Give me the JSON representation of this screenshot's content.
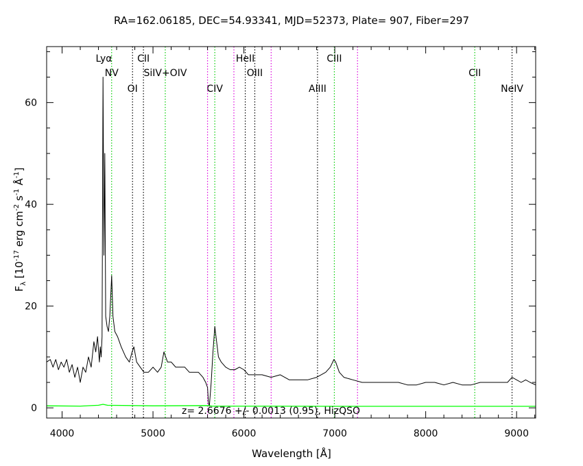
{
  "chart_data": {
    "type": "line",
    "title": "RA=162.06185, DEC=54.93341, MJD=52373, Plate= 907, Fiber=297",
    "xlabel": "Wavelength [Å]",
    "ylabel": "F_λ [10^-17 erg cm^-2 s^-1 Å^-1]",
    "xlim": [
      3830,
      9210
    ],
    "ylim": [
      -2,
      71
    ],
    "x_ticks": [
      4000,
      5000,
      6000,
      7000,
      8000,
      9000
    ],
    "y_ticks": [
      0,
      20,
      40,
      60
    ],
    "annotation": "z= 2.6676 +/- 0.0013 (0.95), HizQSO",
    "colors": {
      "flux": "#000000",
      "error": "#00ff00",
      "green_line": "#00cc00",
      "magenta_line": "#dd00dd",
      "black_line": "#000000"
    },
    "lines": [
      {
        "label": "Lyα",
        "x": 4460,
        "style": "none",
        "tier": 0
      },
      {
        "label": "NV",
        "x": 4545,
        "style": "green",
        "tier": 1
      },
      {
        "label": "OI",
        "x": 4775,
        "style": "black",
        "tier": 2
      },
      {
        "label": "CII",
        "x": 4895,
        "style": "black",
        "tier": 0
      },
      {
        "label": "SiIV+OIV",
        "x": 5135,
        "style": "green",
        "tier": 1
      },
      {
        "label": "CIV",
        "x": 5680,
        "style": "green",
        "tier": 2
      },
      {
        "label": "",
        "x": 5600,
        "style": "magenta",
        "tier": -1
      },
      {
        "label": "",
        "x": 5890,
        "style": "magenta",
        "tier": -1
      },
      {
        "label": "HeII",
        "x": 6015,
        "style": "black",
        "tier": 0
      },
      {
        "label": "OIII",
        "x": 6120,
        "style": "black",
        "tier": 1
      },
      {
        "label": "",
        "x": 6300,
        "style": "magenta",
        "tier": -1
      },
      {
        "label": "AlIII",
        "x": 6810,
        "style": "black",
        "tier": 2
      },
      {
        "label": "CIII",
        "x": 6995,
        "style": "green",
        "tier": 0
      },
      {
        "label": "",
        "x": 7250,
        "style": "magenta",
        "tier": -1
      },
      {
        "label": "CII",
        "x": 8540,
        "style": "green",
        "tier": 1
      },
      {
        "label": "NeIV",
        "x": 8950,
        "style": "black",
        "tier": 2
      }
    ],
    "series": [
      {
        "role": "flux",
        "x": [
          3830,
          3870,
          3900,
          3930,
          3960,
          3990,
          4020,
          4050,
          4080,
          4110,
          4140,
          4170,
          4200,
          4230,
          4260,
          4290,
          4320,
          4350,
          4370,
          4390,
          4410,
          4420,
          4430,
          4440,
          4450,
          4460,
          4470,
          4480,
          4495,
          4510,
          4525,
          4545,
          4560,
          4580,
          4610,
          4650,
          4700,
          4740,
          4770,
          4790,
          4820,
          4860,
          4900,
          4950,
          5000,
          5050,
          5090,
          5120,
          5140,
          5160,
          5200,
          5250,
          5300,
          5350,
          5400,
          5450,
          5500,
          5550,
          5580,
          5600,
          5610,
          5620,
          5640,
          5660,
          5680,
          5700,
          5720,
          5750,
          5800,
          5850,
          5900,
          5950,
          6000,
          6050,
          6100,
          6150,
          6200,
          6300,
          6400,
          6500,
          6600,
          6700,
          6800,
          6850,
          6900,
          6950,
          6990,
          7010,
          7050,
          7100,
          7200,
          7300,
          7400,
          7500,
          7600,
          7700,
          7800,
          7900,
          8000,
          8100,
          8200,
          8300,
          8400,
          8500,
          8600,
          8700,
          8800,
          8900,
          8950,
          9000,
          9050,
          9100,
          9150,
          9210
        ],
        "y": [
          9,
          9.5,
          8,
          9.5,
          7.5,
          9,
          8,
          9.5,
          7,
          8.5,
          6,
          8,
          5,
          8,
          7,
          10,
          8,
          13,
          11,
          14,
          9,
          12,
          10,
          14,
          65,
          30,
          50,
          18,
          16,
          15,
          18,
          26,
          18,
          15,
          14,
          12,
          10,
          9,
          11,
          12,
          9,
          8,
          7,
          7,
          8,
          7,
          8,
          11,
          10,
          9,
          9,
          8,
          8,
          8,
          7,
          7,
          7,
          6,
          5,
          4,
          1,
          0.3,
          5,
          11,
          16,
          13,
          10,
          9,
          8,
          7.5,
          7.5,
          8,
          7.5,
          6.5,
          6.5,
          6.5,
          6.5,
          6,
          6.5,
          5.5,
          5.5,
          5.5,
          6,
          6.5,
          7,
          8,
          9.5,
          9,
          7,
          6,
          5.5,
          5,
          5,
          5,
          5,
          5,
          4.5,
          4.5,
          5,
          5,
          4.5,
          5,
          4.5,
          4.5,
          5,
          5,
          5,
          5,
          6,
          5.5,
          5,
          5.5,
          5,
          4.5
        ]
      },
      {
        "role": "error",
        "x": [
          3830,
          4200,
          4400,
          4450,
          4500,
          5000,
          5600,
          5650,
          6000,
          7000,
          8000,
          9210
        ],
        "y": [
          0.4,
          0.35,
          0.5,
          0.7,
          0.5,
          0.4,
          0.45,
          0.35,
          0.35,
          0.3,
          0.3,
          0.3
        ]
      }
    ]
  }
}
